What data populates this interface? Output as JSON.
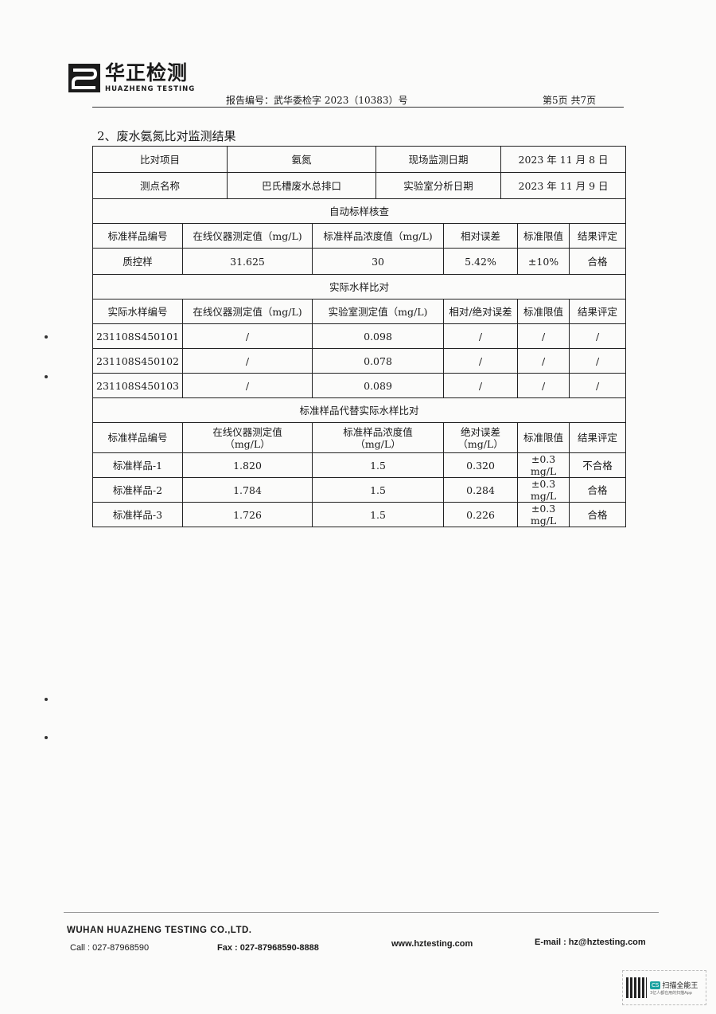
{
  "header": {
    "logo_cn": "华正检测",
    "logo_en": "HUAZHENG TESTING",
    "report_no": "报告编号：武华委检字 2023（10383）号",
    "page_no": "第5页  共7页"
  },
  "section_title": "2、废水氨氮比对监测结果",
  "info": {
    "item_label": "比对项目",
    "item_value": "氨氮",
    "site_date_label": "现场监测日期",
    "site_date": "2023 年 11 月 8 日",
    "point_label": "测点名称",
    "point_value": "巴氏槽废水总排口",
    "lab_date_label": "实验室分析日期",
    "lab_date": "2023 年 11 月 9 日"
  },
  "auto_check": {
    "title": "自动标样核查",
    "headers": [
      "标准样品编号",
      "在线仪器测定值（mg/L)",
      "标准样品浓度值（mg/L)",
      "相对误差",
      "标准限值",
      "结果评定"
    ],
    "rows": [
      [
        "质控样",
        "31.625",
        "30",
        "5.42%",
        "±10%",
        "合格"
      ]
    ]
  },
  "actual": {
    "title": "实际水样比对",
    "headers": [
      "实际水样编号",
      "在线仪器测定值（mg/L)",
      "实验室测定值（mg/L)",
      "相对/绝对误差",
      "标准限值",
      "结果评定"
    ],
    "rows": [
      [
        "231108S450101",
        "/",
        "0.098",
        "/",
        "/",
        "/"
      ],
      [
        "231108S450102",
        "/",
        "0.078",
        "/",
        "/",
        "/"
      ],
      [
        "231108S450103",
        "/",
        "0.089",
        "/",
        "/",
        "/"
      ]
    ]
  },
  "substitute": {
    "title": "标准样品代替实际水样比对",
    "headers": [
      "标准样品编号",
      "在线仪器测定值\n（mg/L）",
      "标准样品浓度值\n（mg/L）",
      "绝对误差\n（mg/L）",
      "标准限值",
      "结果评定"
    ],
    "rows": [
      [
        "标准样品-1",
        "1.820",
        "1.5",
        "0.320",
        "±0.3 mg/L",
        "不合格"
      ],
      [
        "标准样品-2",
        "1.784",
        "1.5",
        "0.284",
        "±0.3 mg/L",
        "合格"
      ],
      [
        "标准样品-3",
        "1.726",
        "1.5",
        "0.226",
        "±0.3 mg/L",
        "合格"
      ]
    ]
  },
  "footer": {
    "company": "WUHAN HUAZHENG TESTING CO.,LTD.",
    "call": "Call : 027-87968590",
    "fax": "Fax : 027-87968590-8888",
    "web": "www.hztesting.com",
    "email": "E-mail : hz@hztesting.com"
  },
  "watermark": {
    "badge": "CS",
    "title": "扫描全能王",
    "sub": "3亿人都在用的扫描App"
  }
}
